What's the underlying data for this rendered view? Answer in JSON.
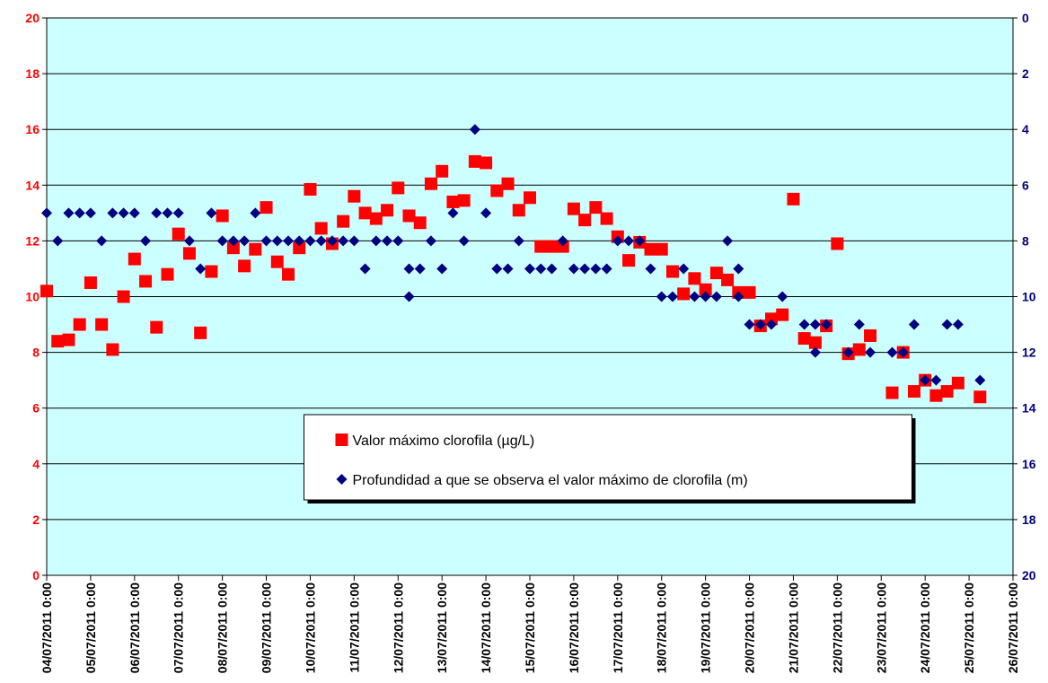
{
  "chart_data": {
    "type": "scatter",
    "xticks": [
      "04/07/2011 0:00",
      "05/07/2011 0:00",
      "06/07/2011 0:00",
      "07/07/2011 0:00",
      "08/07/2011 0:00",
      "09/07/2011 0:00",
      "10/07/2011 0:00",
      "11/07/2011 0:00",
      "12/07/2011 0:00",
      "13/07/2011 0:00",
      "14/07/2011 0:00",
      "15/07/2011 0:00",
      "16/07/2011 0:00",
      "17/07/2011 0:00",
      "18/07/2011 0:00",
      "19/07/2011 0:00",
      "20/07/2011 0:00",
      "21/07/2011 0:00",
      "22/07/2011 0:00",
      "23/07/2011 0:00",
      "24/07/2011 0:00",
      "25/07/2011 0:00",
      "26/07/2011 0:00"
    ],
    "xlim": [
      "04/07/2011 0:00",
      "26/07/2011 0:00"
    ],
    "ylim": [
      0,
      20
    ],
    "yticks": [
      0,
      2,
      4,
      6,
      8,
      10,
      12,
      14,
      16,
      18,
      20
    ],
    "y2lim": [
      20,
      0
    ],
    "y2ticks": [
      0,
      2,
      4,
      6,
      8,
      10,
      12,
      14,
      16,
      18,
      20
    ],
    "grid": true,
    "legend": "lower center",
    "series": [
      {
        "name": "Valor máximo clorofila (µg/L)",
        "color": "#ff0000",
        "marker": "square",
        "x": [
          "04/07/2011 0:00",
          "04/07/2011 6:00",
          "04/07/2011 12:00",
          "04/07/2011 18:00",
          "05/07/2011 0:00",
          "05/07/2011 6:00",
          "05/07/2011 12:00",
          "05/07/2011 18:00",
          "06/07/2011 0:00",
          "06/07/2011 6:00",
          "06/07/2011 12:00",
          "06/07/2011 18:00",
          "07/07/2011 0:00",
          "07/07/2011 6:00",
          "07/07/2011 12:00",
          "07/07/2011 18:00",
          "08/07/2011 0:00",
          "08/07/2011 6:00",
          "08/07/2011 12:00",
          "08/07/2011 18:00",
          "09/07/2011 0:00",
          "09/07/2011 6:00",
          "09/07/2011 12:00",
          "09/07/2011 18:00",
          "10/07/2011 0:00",
          "10/07/2011 6:00",
          "10/07/2011 12:00",
          "10/07/2011 18:00",
          "11/07/2011 0:00",
          "11/07/2011 6:00",
          "11/07/2011 12:00",
          "11/07/2011 18:00",
          "12/07/2011 0:00",
          "12/07/2011 6:00",
          "12/07/2011 12:00",
          "12/07/2011 18:00",
          "13/07/2011 0:00",
          "13/07/2011 6:00",
          "13/07/2011 12:00",
          "13/07/2011 18:00",
          "14/07/2011 0:00",
          "14/07/2011 6:00",
          "14/07/2011 12:00",
          "14/07/2011 18:00",
          "15/07/2011 0:00",
          "15/07/2011 6:00",
          "15/07/2011 12:00",
          "15/07/2011 18:00",
          "16/07/2011 0:00",
          "16/07/2011 6:00",
          "16/07/2011 12:00",
          "16/07/2011 18:00",
          "17/07/2011 0:00",
          "17/07/2011 6:00",
          "17/07/2011 12:00",
          "17/07/2011 18:00",
          "18/07/2011 0:00",
          "18/07/2011 6:00",
          "18/07/2011 12:00",
          "18/07/2011 18:00",
          "19/07/2011 0:00",
          "19/07/2011 6:00",
          "19/07/2011 12:00",
          "19/07/2011 18:00",
          "20/07/2011 0:00",
          "20/07/2011 6:00",
          "20/07/2011 12:00",
          "20/07/2011 18:00",
          "21/07/2011 0:00",
          "21/07/2011 6:00",
          "21/07/2011 12:00",
          "21/07/2011 18:00",
          "22/07/2011 0:00",
          "22/07/2011 6:00",
          "22/07/2011 12:00",
          "22/07/2011 18:00",
          "23/07/2011 6:00",
          "23/07/2011 12:00",
          "23/07/2011 18:00",
          "24/07/2011 0:00",
          "24/07/2011 6:00",
          "24/07/2011 12:00",
          "24/07/2011 18:00",
          "25/07/2011 6:00"
        ],
        "values": [
          10.2,
          8.4,
          8.45,
          9.0,
          10.5,
          9.0,
          8.1,
          10.0,
          11.35,
          10.55,
          8.9,
          10.8,
          12.25,
          11.55,
          8.7,
          10.9,
          12.9,
          11.75,
          11.1,
          11.7,
          13.2,
          11.25,
          10.8,
          11.75,
          13.85,
          12.45,
          11.9,
          12.7,
          13.6,
          13.0,
          12.8,
          13.1,
          13.9,
          12.9,
          12.65,
          14.05,
          14.5,
          13.4,
          13.45,
          14.85,
          14.8,
          13.8,
          14.05,
          13.1,
          13.55,
          11.8,
          11.8,
          11.8,
          13.15,
          12.75,
          13.2,
          12.8,
          12.15,
          11.3,
          11.95,
          11.7,
          11.7,
          10.9,
          10.1,
          10.65,
          10.25,
          10.85,
          10.6,
          10.15,
          10.15,
          8.95,
          9.2,
          9.35,
          13.5,
          8.5,
          8.35,
          8.95,
          11.9,
          7.95,
          8.1,
          8.6,
          6.55,
          8.0,
          6.6,
          7.0,
          6.45,
          6.6,
          6.9,
          6.4
        ]
      },
      {
        "name": "Profundidad a que se observa el valor máximo de clorofila (m)",
        "color": "#000080",
        "marker": "diamond",
        "axis": "y2",
        "x": [
          "04/07/2011 0:00",
          "04/07/2011 6:00",
          "04/07/2011 12:00",
          "04/07/2011 18:00",
          "05/07/2011 0:00",
          "05/07/2011 6:00",
          "05/07/2011 12:00",
          "05/07/2011 18:00",
          "06/07/2011 0:00",
          "06/07/2011 6:00",
          "06/07/2011 12:00",
          "06/07/2011 18:00",
          "07/07/2011 0:00",
          "07/07/2011 6:00",
          "07/07/2011 12:00",
          "07/07/2011 18:00",
          "08/07/2011 0:00",
          "08/07/2011 6:00",
          "08/07/2011 12:00",
          "08/07/2011 18:00",
          "09/07/2011 0:00",
          "09/07/2011 6:00",
          "09/07/2011 12:00",
          "09/07/2011 18:00",
          "10/07/2011 0:00",
          "10/07/2011 6:00",
          "10/07/2011 12:00",
          "10/07/2011 18:00",
          "11/07/2011 0:00",
          "11/07/2011 6:00",
          "11/07/2011 12:00",
          "11/07/2011 18:00",
          "12/07/2011 0:00",
          "12/07/2011 6:00",
          "12/07/2011 6:00",
          "12/07/2011 12:00",
          "12/07/2011 18:00",
          "13/07/2011 0:00",
          "13/07/2011 6:00",
          "13/07/2011 12:00",
          "13/07/2011 18:00",
          "14/07/2011 0:00",
          "14/07/2011 6:00",
          "14/07/2011 12:00",
          "14/07/2011 18:00",
          "15/07/2011 0:00",
          "15/07/2011 6:00",
          "15/07/2011 12:00",
          "15/07/2011 18:00",
          "16/07/2011 0:00",
          "16/07/2011 6:00",
          "16/07/2011 12:00",
          "16/07/2011 18:00",
          "17/07/2011 0:00",
          "17/07/2011 6:00",
          "17/07/2011 12:00",
          "17/07/2011 18:00",
          "18/07/2011 0:00",
          "18/07/2011 6:00",
          "18/07/2011 12:00",
          "18/07/2011 18:00",
          "19/07/2011 0:00",
          "19/07/2011 6:00",
          "19/07/2011 12:00",
          "19/07/2011 18:00",
          "19/07/2011 18:00",
          "20/07/2011 0:00",
          "20/07/2011 6:00",
          "20/07/2011 12:00",
          "20/07/2011 18:00",
          "21/07/2011 6:00",
          "21/07/2011 12:00",
          "21/07/2011 12:00",
          "21/07/2011 18:00",
          "22/07/2011 6:00",
          "22/07/2011 12:00",
          "22/07/2011 18:00",
          "23/07/2011 6:00",
          "23/07/2011 12:00",
          "23/07/2011 18:00",
          "24/07/2011 0:00",
          "24/07/2011 6:00",
          "24/07/2011 12:00",
          "24/07/2011 18:00",
          "25/07/2011 6:00"
        ],
        "values": [
          7,
          8,
          7,
          7,
          7,
          8,
          7,
          7,
          7,
          8,
          7,
          7,
          7,
          8,
          9,
          7,
          8,
          8,
          8,
          7,
          8,
          8,
          8,
          8,
          8,
          8,
          8,
          8,
          8,
          9,
          8,
          8,
          8,
          10,
          9,
          9,
          8,
          9,
          7,
          8,
          4,
          7,
          9,
          9,
          8,
          9,
          9,
          9,
          8,
          9,
          9,
          9,
          9,
          8,
          8,
          8,
          9,
          10,
          10,
          9,
          10,
          10,
          10,
          8,
          9,
          10,
          11,
          11,
          11,
          10,
          11,
          12,
          11,
          11,
          12,
          11,
          12,
          12,
          12,
          11,
          13,
          13,
          11,
          11,
          13
        ]
      }
    ]
  }
}
